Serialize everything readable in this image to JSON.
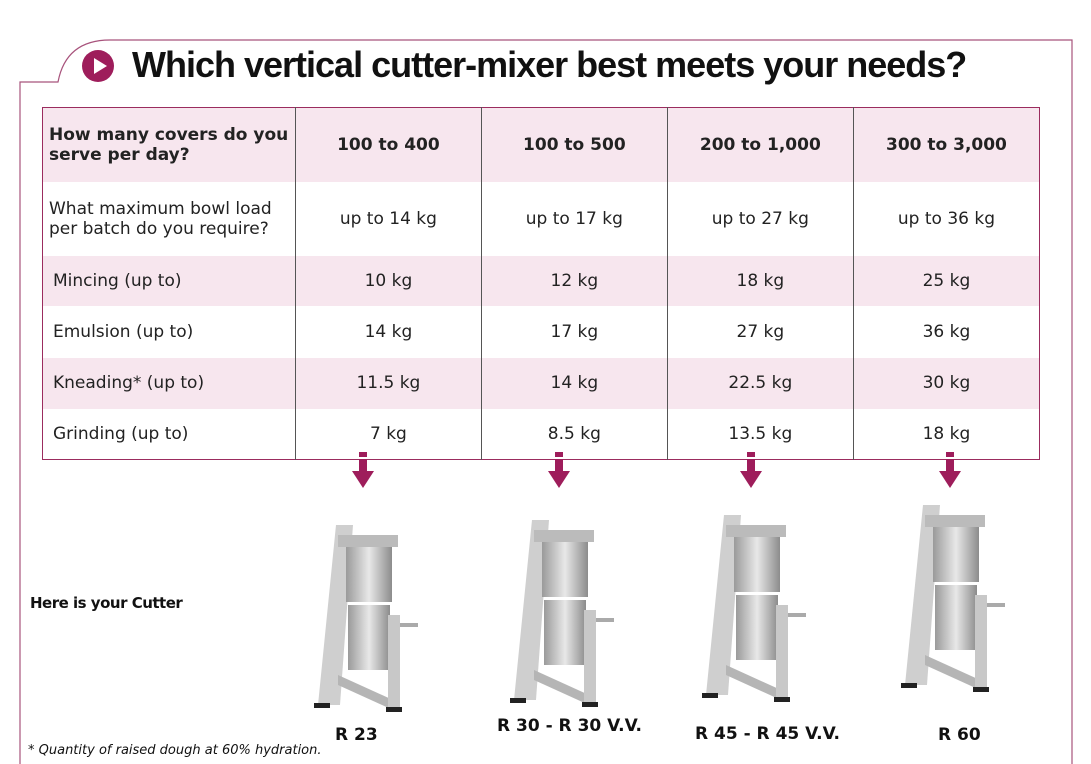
{
  "title": "Which vertical cutter-mixer best meets your needs?",
  "accent_color": "#9e1d5b",
  "table": {
    "rows": [
      {
        "label": "How many covers do you serve per day?",
        "values": [
          "100 to 400",
          "100 to 500",
          "200 to 1,000",
          "300 to 3,000"
        ]
      },
      {
        "label": "What maximum bowl load per batch do you require?",
        "values": [
          "up to 14 kg",
          "up to 17 kg",
          "up to 27 kg",
          "up to 36 kg"
        ]
      },
      {
        "label": "Mincing (up to)",
        "values": [
          "10 kg",
          "12 kg",
          "18 kg",
          "25 kg"
        ]
      },
      {
        "label": "Emulsion (up to)",
        "values": [
          "14 kg",
          "17 kg",
          "27 kg",
          "36 kg"
        ]
      },
      {
        "label": "Kneading* (up to)",
        "values": [
          "11.5 kg",
          "14 kg",
          "22.5 kg",
          "30 kg"
        ]
      },
      {
        "label": "Grinding (up to)",
        "values": [
          "7 kg",
          "8.5 kg",
          "13.5 kg",
          "18 kg"
        ]
      }
    ]
  },
  "here_label": "Here is your Cutter",
  "models": [
    "R 23",
    "R 30 - R 30 V.V.",
    "R 45 - R 45 V.V.",
    "R 60"
  ],
  "footnote": "* Quantity of raised dough at 60% hydration."
}
